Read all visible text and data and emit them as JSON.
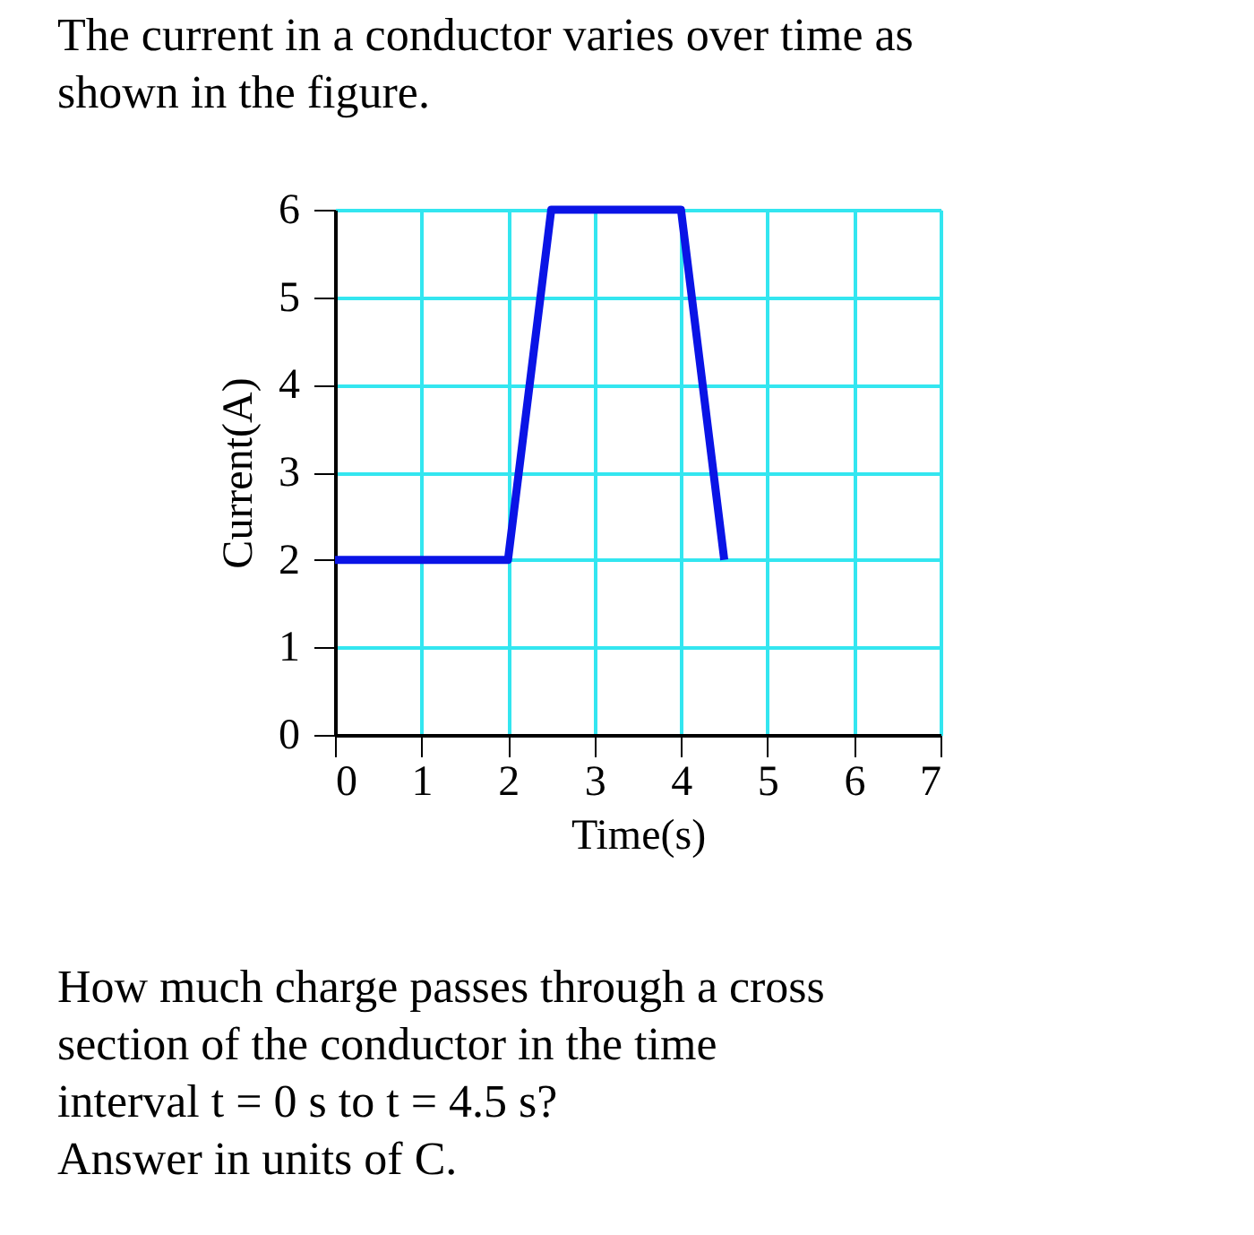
{
  "chart_data": {
    "type": "line",
    "title": "The current in a conductor varies over time as shown in the figure.",
    "xlabel": "Time(s)",
    "ylabel": "Current(A)",
    "x": [
      0,
      2,
      2.5,
      4,
      4.5
    ],
    "series": [
      {
        "color": "#0a14e6",
        "values": [
          2,
          2,
          6,
          6,
          2
        ]
      }
    ],
    "xlim": [
      0,
      7
    ],
    "xticks": [
      0,
      1,
      2,
      3,
      4,
      5,
      6,
      7
    ],
    "ylim": [
      0,
      6
    ],
    "yticks": [
      0,
      1,
      2,
      3,
      4,
      5,
      6
    ],
    "grid": true,
    "marker": "none",
    "line_style": "solid",
    "annotations": [
      "How much charge passes through a cross section of the conductor in the time interval t = 0 s to t = 4.5 s?",
      "Answer in units of C."
    ]
  }
}
